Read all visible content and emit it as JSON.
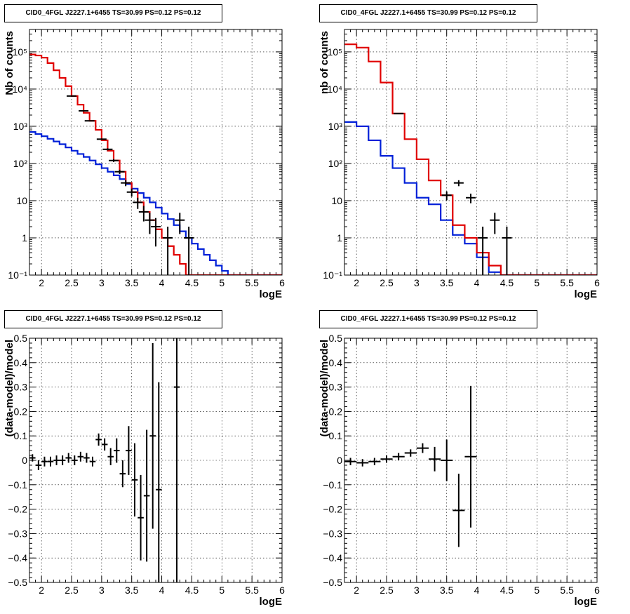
{
  "theme": {
    "data_color": "#000000",
    "model_color": "#e00000",
    "component_color": "#0020d8"
  },
  "chart_data": [
    {
      "id": "tl",
      "type": "step-histogram",
      "title": "CID0_4FGL J2227.1+6455 TS=30.99 PS=0.12 PS=0.12",
      "xlabel": "logE",
      "ylabel": "Nb of counts",
      "xlim": [
        1.8,
        6.0
      ],
      "ylim": [
        0.1,
        400000
      ],
      "yscale": "log",
      "grid": true,
      "xticks": [
        2,
        2.5,
        3,
        3.5,
        4,
        4.5,
        5,
        5.5,
        6
      ],
      "xticklabels": [
        "2",
        "2.5",
        "3",
        "3.5",
        "4",
        "4.5",
        "5",
        "5.5",
        "6"
      ],
      "yticks": [
        0.1,
        1,
        10,
        100,
        1000,
        10000,
        100000
      ],
      "yticklabels": [
        "10⁻¹",
        "1",
        "10",
        "10²",
        "10³",
        "10⁴",
        "10⁵"
      ],
      "bin_edges": [
        1.8,
        1.9,
        2.0,
        2.1,
        2.2,
        2.3,
        2.4,
        2.5,
        2.6,
        2.7,
        2.8,
        2.9,
        3.0,
        3.1,
        3.2,
        3.3,
        3.4,
        3.5,
        3.6,
        3.7,
        3.8,
        3.9,
        4.0,
        4.1,
        4.2,
        4.3,
        4.4,
        4.5,
        4.6,
        4.7,
        4.8,
        4.9,
        5.0,
        5.1,
        5.2,
        5.3,
        5.4,
        5.5,
        5.6,
        5.7,
        5.8,
        5.9,
        6.0
      ],
      "series": [
        {
          "role": "model",
          "values": [
            85000,
            80000,
            70000,
            50000,
            32000,
            20000,
            12000,
            6500,
            3800,
            2300,
            1400,
            800,
            420,
            220,
            120,
            60,
            30,
            17,
            9,
            5,
            3,
            1.7,
            1.0,
            0.6,
            0.35,
            0.2,
            0.1,
            0.1,
            0.1,
            0.1,
            0.1,
            0.1,
            0.1,
            0.1,
            0.1,
            0.1,
            0.1,
            0.1,
            0.1,
            0.1,
            0.1,
            0.1
          ]
        },
        {
          "role": "component",
          "values": [
            700,
            620,
            540,
            460,
            390,
            330,
            270,
            220,
            180,
            150,
            120,
            95,
            75,
            60,
            48,
            38,
            28,
            21,
            16,
            12,
            9,
            6.5,
            4.5,
            3.2,
            2.2,
            1.5,
            1.0,
            0.7,
            0.5,
            0.35,
            0.25,
            0.18,
            0.13,
            0.1,
            0.1,
            0.1,
            0.1,
            0.1,
            0.1,
            0.1,
            0.1,
            0.1
          ]
        },
        {
          "role": "data",
          "points": [
            {
              "x": 2.5,
              "y": 6500
            },
            {
              "x": 2.7,
              "y": 2600
            },
            {
              "x": 2.8,
              "y": 1400
            },
            {
              "x": 3.0,
              "y": 450
            },
            {
              "x": 3.1,
              "y": 240
            },
            {
              "x": 3.2,
              "y": 120
            },
            {
              "x": 3.3,
              "y": 60
            },
            {
              "x": 3.4,
              "y": 30
            },
            {
              "x": 3.5,
              "y": 17
            },
            {
              "x": 3.6,
              "y": 9
            },
            {
              "x": 3.7,
              "y": 5
            },
            {
              "x": 3.8,
              "y": 3
            },
            {
              "x": 3.9,
              "y": 2
            },
            {
              "x": 4.1,
              "y": 1
            },
            {
              "x": 4.3,
              "y": 3
            },
            {
              "x": 4.45,
              "y": 1
            }
          ]
        }
      ]
    },
    {
      "id": "tr",
      "type": "step-histogram",
      "title": "CID0_4FGL J2227.1+6455 TS=30.99 PS=0.12 PS=0.12",
      "xlabel": "logE",
      "ylabel": "nb of counts",
      "xlim": [
        1.8,
        6.0
      ],
      "ylim": [
        0.1,
        400000
      ],
      "yscale": "log",
      "grid": true,
      "xticks": [
        2,
        2.5,
        3,
        3.5,
        4,
        4.5,
        5,
        5.5,
        6
      ],
      "xticklabels": [
        "2",
        "2.5",
        "3",
        "3.5",
        "4",
        "4.5",
        "5",
        "5.5",
        "6"
      ],
      "yticks": [
        0.1,
        1,
        10,
        100,
        1000,
        10000,
        100000
      ],
      "yticklabels": [
        "10⁻¹",
        "1",
        "10",
        "10²",
        "10³",
        "10⁴",
        "10⁵"
      ],
      "bin_edges": [
        1.8,
        2.0,
        2.2,
        2.4,
        2.6,
        2.8,
        3.0,
        3.2,
        3.4,
        3.6,
        3.8,
        4.0,
        4.2,
        4.4,
        4.6,
        4.8,
        5.0,
        5.2,
        5.4,
        5.6,
        5.8,
        6.0
      ],
      "series": [
        {
          "role": "model",
          "values": [
            160000,
            130000,
            55000,
            15000,
            2200,
            450,
            130,
            35,
            14,
            2.2,
            1.0,
            0.4,
            0.18,
            0.1,
            0.1,
            0.1,
            0.1,
            0.1,
            0.1,
            0.1,
            0.1
          ]
        },
        {
          "role": "component",
          "values": [
            1300,
            1000,
            420,
            160,
            75,
            30,
            12,
            8,
            3,
            1.2,
            0.7,
            0.3,
            0.12,
            0.1,
            0.1,
            0.1,
            0.1,
            0.1,
            0.1,
            0.1,
            0.1
          ]
        },
        {
          "role": "data",
          "points": [
            {
              "x": 2.7,
              "y": 2200
            },
            {
              "x": 3.5,
              "y": 14
            },
            {
              "x": 3.7,
              "y": 30
            },
            {
              "x": 3.9,
              "y": 12
            },
            {
              "x": 4.1,
              "y": 1
            },
            {
              "x": 4.3,
              "y": 3
            },
            {
              "x": 4.5,
              "y": 1
            }
          ]
        }
      ]
    },
    {
      "id": "bl",
      "type": "scatter-errorbars",
      "title": "CID0_4FGL J2227.1+6455 TS=30.99 PS=0.12 PS=0.12",
      "xlabel": "logE",
      "ylabel": "(data-model)/model",
      "xlim": [
        1.8,
        6.0
      ],
      "ylim": [
        -0.5,
        0.5
      ],
      "grid": true,
      "xticks": [
        2,
        2.5,
        3,
        3.5,
        4,
        4.5,
        5,
        5.5,
        6
      ],
      "xticklabels": [
        "2",
        "2.5",
        "3",
        "3.5",
        "4",
        "4.5",
        "5",
        "5.5",
        "6"
      ],
      "yticks": [
        -0.5,
        -0.4,
        -0.3,
        -0.2,
        -0.1,
        0,
        0.1,
        0.2,
        0.3,
        0.4,
        0.5
      ],
      "yticklabels": [
        "−0.5",
        "−0.4",
        "−0.3",
        "−0.2",
        "−0.1",
        "0",
        "0.1",
        "0.2",
        "0.3",
        "0.4",
        "0.5"
      ],
      "points": [
        {
          "x": 1.85,
          "y": 0.01,
          "err": 0.015,
          "xerr": 0.05
        },
        {
          "x": 1.95,
          "y": -0.02,
          "err": 0.02,
          "xerr": 0.05
        },
        {
          "x": 2.05,
          "y": -0.005,
          "err": 0.02,
          "xerr": 0.05
        },
        {
          "x": 2.15,
          "y": -0.005,
          "err": 0.02,
          "xerr": 0.05
        },
        {
          "x": 2.25,
          "y": 0.0,
          "err": 0.02,
          "xerr": 0.05
        },
        {
          "x": 2.35,
          "y": 0.0,
          "err": 0.02,
          "xerr": 0.05
        },
        {
          "x": 2.45,
          "y": 0.01,
          "err": 0.02,
          "xerr": 0.05
        },
        {
          "x": 2.55,
          "y": 0.0,
          "err": 0.02,
          "xerr": 0.05
        },
        {
          "x": 2.65,
          "y": 0.015,
          "err": 0.02,
          "xerr": 0.05
        },
        {
          "x": 2.75,
          "y": 0.01,
          "err": 0.02,
          "xerr": 0.05
        },
        {
          "x": 2.85,
          "y": -0.005,
          "err": 0.02,
          "xerr": 0.05
        },
        {
          "x": 2.95,
          "y": 0.085,
          "err": 0.025,
          "xerr": 0.05
        },
        {
          "x": 3.05,
          "y": 0.065,
          "err": 0.025,
          "xerr": 0.05
        },
        {
          "x": 3.15,
          "y": 0.015,
          "err": 0.035,
          "xerr": 0.05
        },
        {
          "x": 3.25,
          "y": 0.04,
          "err": 0.05,
          "xerr": 0.05
        },
        {
          "x": 3.35,
          "y": -0.055,
          "err": 0.055,
          "xerr": 0.05
        },
        {
          "x": 3.45,
          "y": 0.04,
          "err": 0.1,
          "xerr": 0.05
        },
        {
          "x": 3.55,
          "y": -0.08,
          "err": 0.15,
          "xerr": 0.05
        },
        {
          "x": 3.65,
          "y": -0.235,
          "err": 0.175,
          "xerr": 0.05
        },
        {
          "x": 3.75,
          "y": -0.145,
          "err": 0.27,
          "xerr": 0.05
        },
        {
          "x": 3.85,
          "y": 0.1,
          "err": 0.38,
          "xerr": 0.05
        },
        {
          "x": 3.95,
          "y": -0.12,
          "err": 0.44,
          "xerr": 0.05
        },
        {
          "x": 4.25,
          "y": 0.3,
          "err": 0.8,
          "xerr": 0.05
        }
      ]
    },
    {
      "id": "br",
      "type": "scatter-errorbars",
      "title": "CID0_4FGL J2227.1+6455 TS=30.99 PS=0.12 PS=0.12",
      "xlabel": "logE",
      "ylabel": "(data-model)/model",
      "xlim": [
        1.8,
        6.0
      ],
      "ylim": [
        -0.5,
        0.5
      ],
      "grid": true,
      "xticks": [
        2,
        2.5,
        3,
        3.5,
        4,
        4.5,
        5,
        5.5,
        6
      ],
      "xticklabels": [
        "2",
        "2.5",
        "3",
        "3.5",
        "4",
        "4.5",
        "5",
        "5.5",
        "6"
      ],
      "yticks": [
        -0.5,
        -0.4,
        -0.3,
        -0.2,
        -0.1,
        0,
        0.1,
        0.2,
        0.3,
        0.4,
        0.5
      ],
      "yticklabels": [
        "−0.5",
        "−0.4",
        "−0.3",
        "−0.2",
        "−0.1",
        "0",
        "0.1",
        "0.2",
        "0.3",
        "0.4",
        "0.5"
      ],
      "points": [
        {
          "x": 1.9,
          "y": -0.005,
          "err": 0.015,
          "xerr": 0.1
        },
        {
          "x": 2.1,
          "y": -0.01,
          "err": 0.015,
          "xerr": 0.1
        },
        {
          "x": 2.3,
          "y": -0.005,
          "err": 0.015,
          "xerr": 0.1
        },
        {
          "x": 2.5,
          "y": 0.005,
          "err": 0.015,
          "xerr": 0.1
        },
        {
          "x": 2.7,
          "y": 0.015,
          "err": 0.015,
          "xerr": 0.1
        },
        {
          "x": 2.9,
          "y": 0.03,
          "err": 0.015,
          "xerr": 0.1
        },
        {
          "x": 3.1,
          "y": 0.05,
          "err": 0.02,
          "xerr": 0.1
        },
        {
          "x": 3.3,
          "y": 0.005,
          "err": 0.05,
          "xerr": 0.1
        },
        {
          "x": 3.5,
          "y": 0.0,
          "err": 0.085,
          "xerr": 0.1
        },
        {
          "x": 3.7,
          "y": -0.205,
          "err": 0.15,
          "xerr": 0.1
        },
        {
          "x": 3.9,
          "y": 0.015,
          "err": 0.29,
          "xerr": 0.1
        }
      ]
    }
  ]
}
